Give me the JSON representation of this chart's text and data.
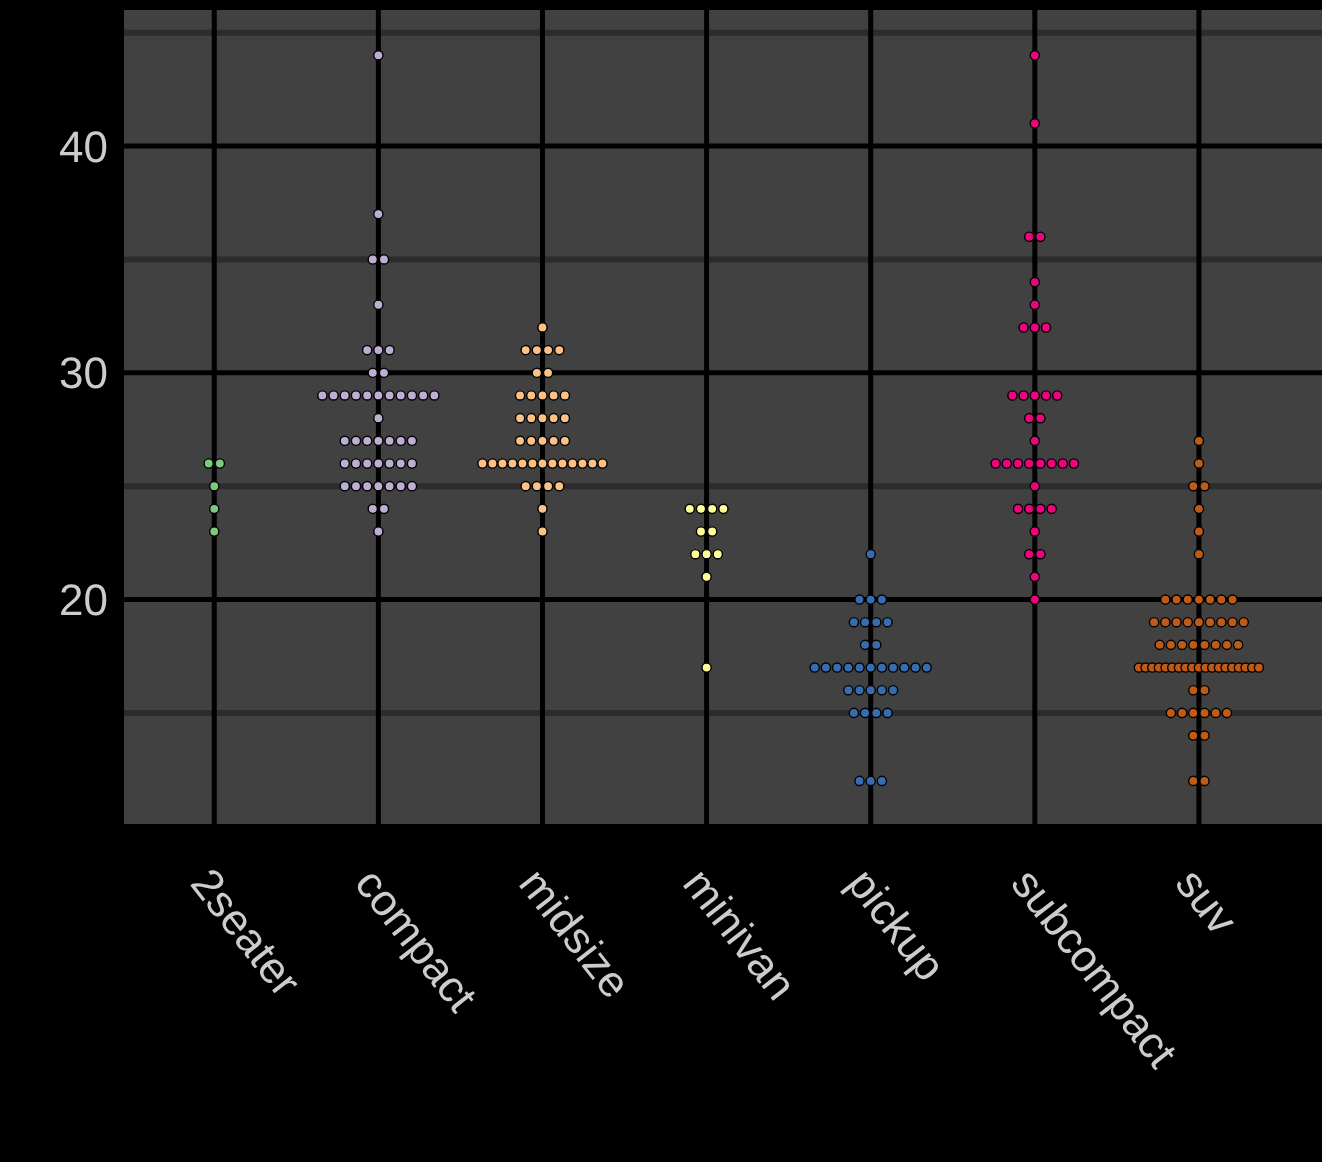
{
  "chart_data": {
    "type": "scatter",
    "categories": [
      "2seater",
      "compact",
      "midsize",
      "minivan",
      "pickup",
      "subcompact",
      "suv"
    ],
    "ylim": [
      10.1,
      46
    ],
    "yticks": [
      {
        "value": 15,
        "label": null
      },
      20,
      {
        "value": 25,
        "label": null
      },
      30,
      {
        "value": 35,
        "label": null
      },
      40,
      {
        "value": 45,
        "label": null
      }
    ],
    "grid": true,
    "marker": "circle",
    "legend": false,
    "series": [
      {
        "color": "#7fc97f",
        "x": [
          "2seater",
          "2seater",
          "2seater",
          "2seater",
          "2seater"
        ],
        "values": [
          26,
          26,
          25,
          24,
          23
        ]
      },
      {
        "color": "#beaed4",
        "x": [
          "compact",
          "compact",
          "compact",
          "compact",
          "compact",
          "compact",
          "compact",
          "compact",
          "compact",
          "compact",
          "compact",
          "compact",
          "compact",
          "compact",
          "compact",
          "compact",
          "compact",
          "compact",
          "compact",
          "compact",
          "compact",
          "compact",
          "compact",
          "compact",
          "compact",
          "compact",
          "compact",
          "compact",
          "compact",
          "compact",
          "compact",
          "compact",
          "compact",
          "compact",
          "compact",
          "compact",
          "compact",
          "compact",
          "compact",
          "compact",
          "compact",
          "compact",
          "compact",
          "compact",
          "compact",
          "compact"
        ],
        "values": [
          44,
          37,
          35,
          35,
          33,
          31,
          31,
          31,
          30,
          30,
          29,
          29,
          29,
          29,
          29,
          29,
          29,
          29,
          29,
          29,
          29,
          28,
          27,
          27,
          27,
          27,
          27,
          27,
          27,
          26,
          26,
          26,
          26,
          26,
          26,
          26,
          25,
          25,
          25,
          25,
          25,
          25,
          25,
          24,
          24,
          23
        ]
      },
      {
        "color": "#fdc086",
        "x": [
          "midsize",
          "midsize",
          "midsize",
          "midsize",
          "midsize",
          "midsize",
          "midsize",
          "midsize",
          "midsize",
          "midsize",
          "midsize",
          "midsize",
          "midsize",
          "midsize",
          "midsize",
          "midsize",
          "midsize",
          "midsize",
          "midsize",
          "midsize",
          "midsize",
          "midsize",
          "midsize",
          "midsize",
          "midsize",
          "midsize",
          "midsize",
          "midsize",
          "midsize",
          "midsize",
          "midsize",
          "midsize",
          "midsize",
          "midsize",
          "midsize",
          "midsize",
          "midsize",
          "midsize",
          "midsize",
          "midsize",
          "midsize"
        ],
        "values": [
          32,
          31,
          31,
          31,
          31,
          30,
          30,
          29,
          29,
          29,
          29,
          29,
          28,
          28,
          28,
          28,
          28,
          27,
          27,
          27,
          27,
          27,
          26,
          26,
          26,
          26,
          26,
          26,
          26,
          26,
          26,
          26,
          26,
          26,
          26,
          25,
          25,
          25,
          25,
          24,
          23
        ]
      },
      {
        "color": "#ffff99",
        "x": [
          "minivan",
          "minivan",
          "minivan",
          "minivan",
          "minivan",
          "minivan",
          "minivan",
          "minivan",
          "minivan",
          "minivan",
          "minivan"
        ],
        "values": [
          24,
          24,
          24,
          24,
          23,
          23,
          22,
          22,
          22,
          21,
          17
        ]
      },
      {
        "color": "#386cb0",
        "x": [
          "pickup",
          "pickup",
          "pickup",
          "pickup",
          "pickup",
          "pickup",
          "pickup",
          "pickup",
          "pickup",
          "pickup",
          "pickup",
          "pickup",
          "pickup",
          "pickup",
          "pickup",
          "pickup",
          "pickup",
          "pickup",
          "pickup",
          "pickup",
          "pickup",
          "pickup",
          "pickup",
          "pickup",
          "pickup",
          "pickup",
          "pickup",
          "pickup",
          "pickup",
          "pickup",
          "pickup",
          "pickup",
          "pickup"
        ],
        "values": [
          22,
          20,
          20,
          20,
          19,
          19,
          19,
          19,
          18,
          18,
          17,
          17,
          17,
          17,
          17,
          17,
          17,
          17,
          17,
          17,
          17,
          16,
          16,
          16,
          16,
          16,
          15,
          15,
          15,
          15,
          12,
          12,
          12
        ]
      },
      {
        "color": "#f0027f",
        "x": [
          "subcompact",
          "subcompact",
          "subcompact",
          "subcompact",
          "subcompact",
          "subcompact",
          "subcompact",
          "subcompact",
          "subcompact",
          "subcompact",
          "subcompact",
          "subcompact",
          "subcompact",
          "subcompact",
          "subcompact",
          "subcompact",
          "subcompact",
          "subcompact",
          "subcompact",
          "subcompact",
          "subcompact",
          "subcompact",
          "subcompact",
          "subcompact",
          "subcompact",
          "subcompact",
          "subcompact",
          "subcompact",
          "subcompact",
          "subcompact",
          "subcompact",
          "subcompact",
          "subcompact",
          "subcompact",
          "subcompact"
        ],
        "values": [
          44,
          41,
          36,
          36,
          34,
          33,
          32,
          32,
          32,
          29,
          29,
          29,
          29,
          29,
          28,
          28,
          27,
          26,
          26,
          26,
          26,
          26,
          26,
          26,
          26,
          25,
          24,
          24,
          24,
          24,
          23,
          22,
          22,
          21,
          20
        ]
      },
      {
        "color": "#bf5b17",
        "x": [
          "suv",
          "suv",
          "suv",
          "suv",
          "suv",
          "suv",
          "suv",
          "suv",
          "suv",
          "suv",
          "suv",
          "suv",
          "suv",
          "suv",
          "suv",
          "suv",
          "suv",
          "suv",
          "suv",
          "suv",
          "suv",
          "suv",
          "suv",
          "suv",
          "suv",
          "suv",
          "suv",
          "suv",
          "suv",
          "suv",
          "suv",
          "suv",
          "suv",
          "suv",
          "suv",
          "suv",
          "suv",
          "suv",
          "suv",
          "suv",
          "suv",
          "suv",
          "suv",
          "suv",
          "suv",
          "suv",
          "suv",
          "suv",
          "suv",
          "suv",
          "suv",
          "suv",
          "suv",
          "suv",
          "suv",
          "suv",
          "suv",
          "suv",
          "suv",
          "suv",
          "suv",
          "suv"
        ],
        "values": [
          27,
          26,
          25,
          25,
          24,
          23,
          22,
          20,
          20,
          20,
          20,
          20,
          20,
          20,
          19,
          19,
          19,
          19,
          19,
          19,
          19,
          19,
          19,
          18,
          18,
          18,
          18,
          18,
          18,
          18,
          18,
          17,
          17,
          17,
          17,
          17,
          17,
          17,
          17,
          17,
          17,
          17,
          17,
          17,
          17,
          17,
          17,
          17,
          17,
          17,
          16,
          16,
          15,
          15,
          15,
          15,
          15,
          15,
          14,
          14,
          12,
          12
        ]
      }
    ]
  }
}
